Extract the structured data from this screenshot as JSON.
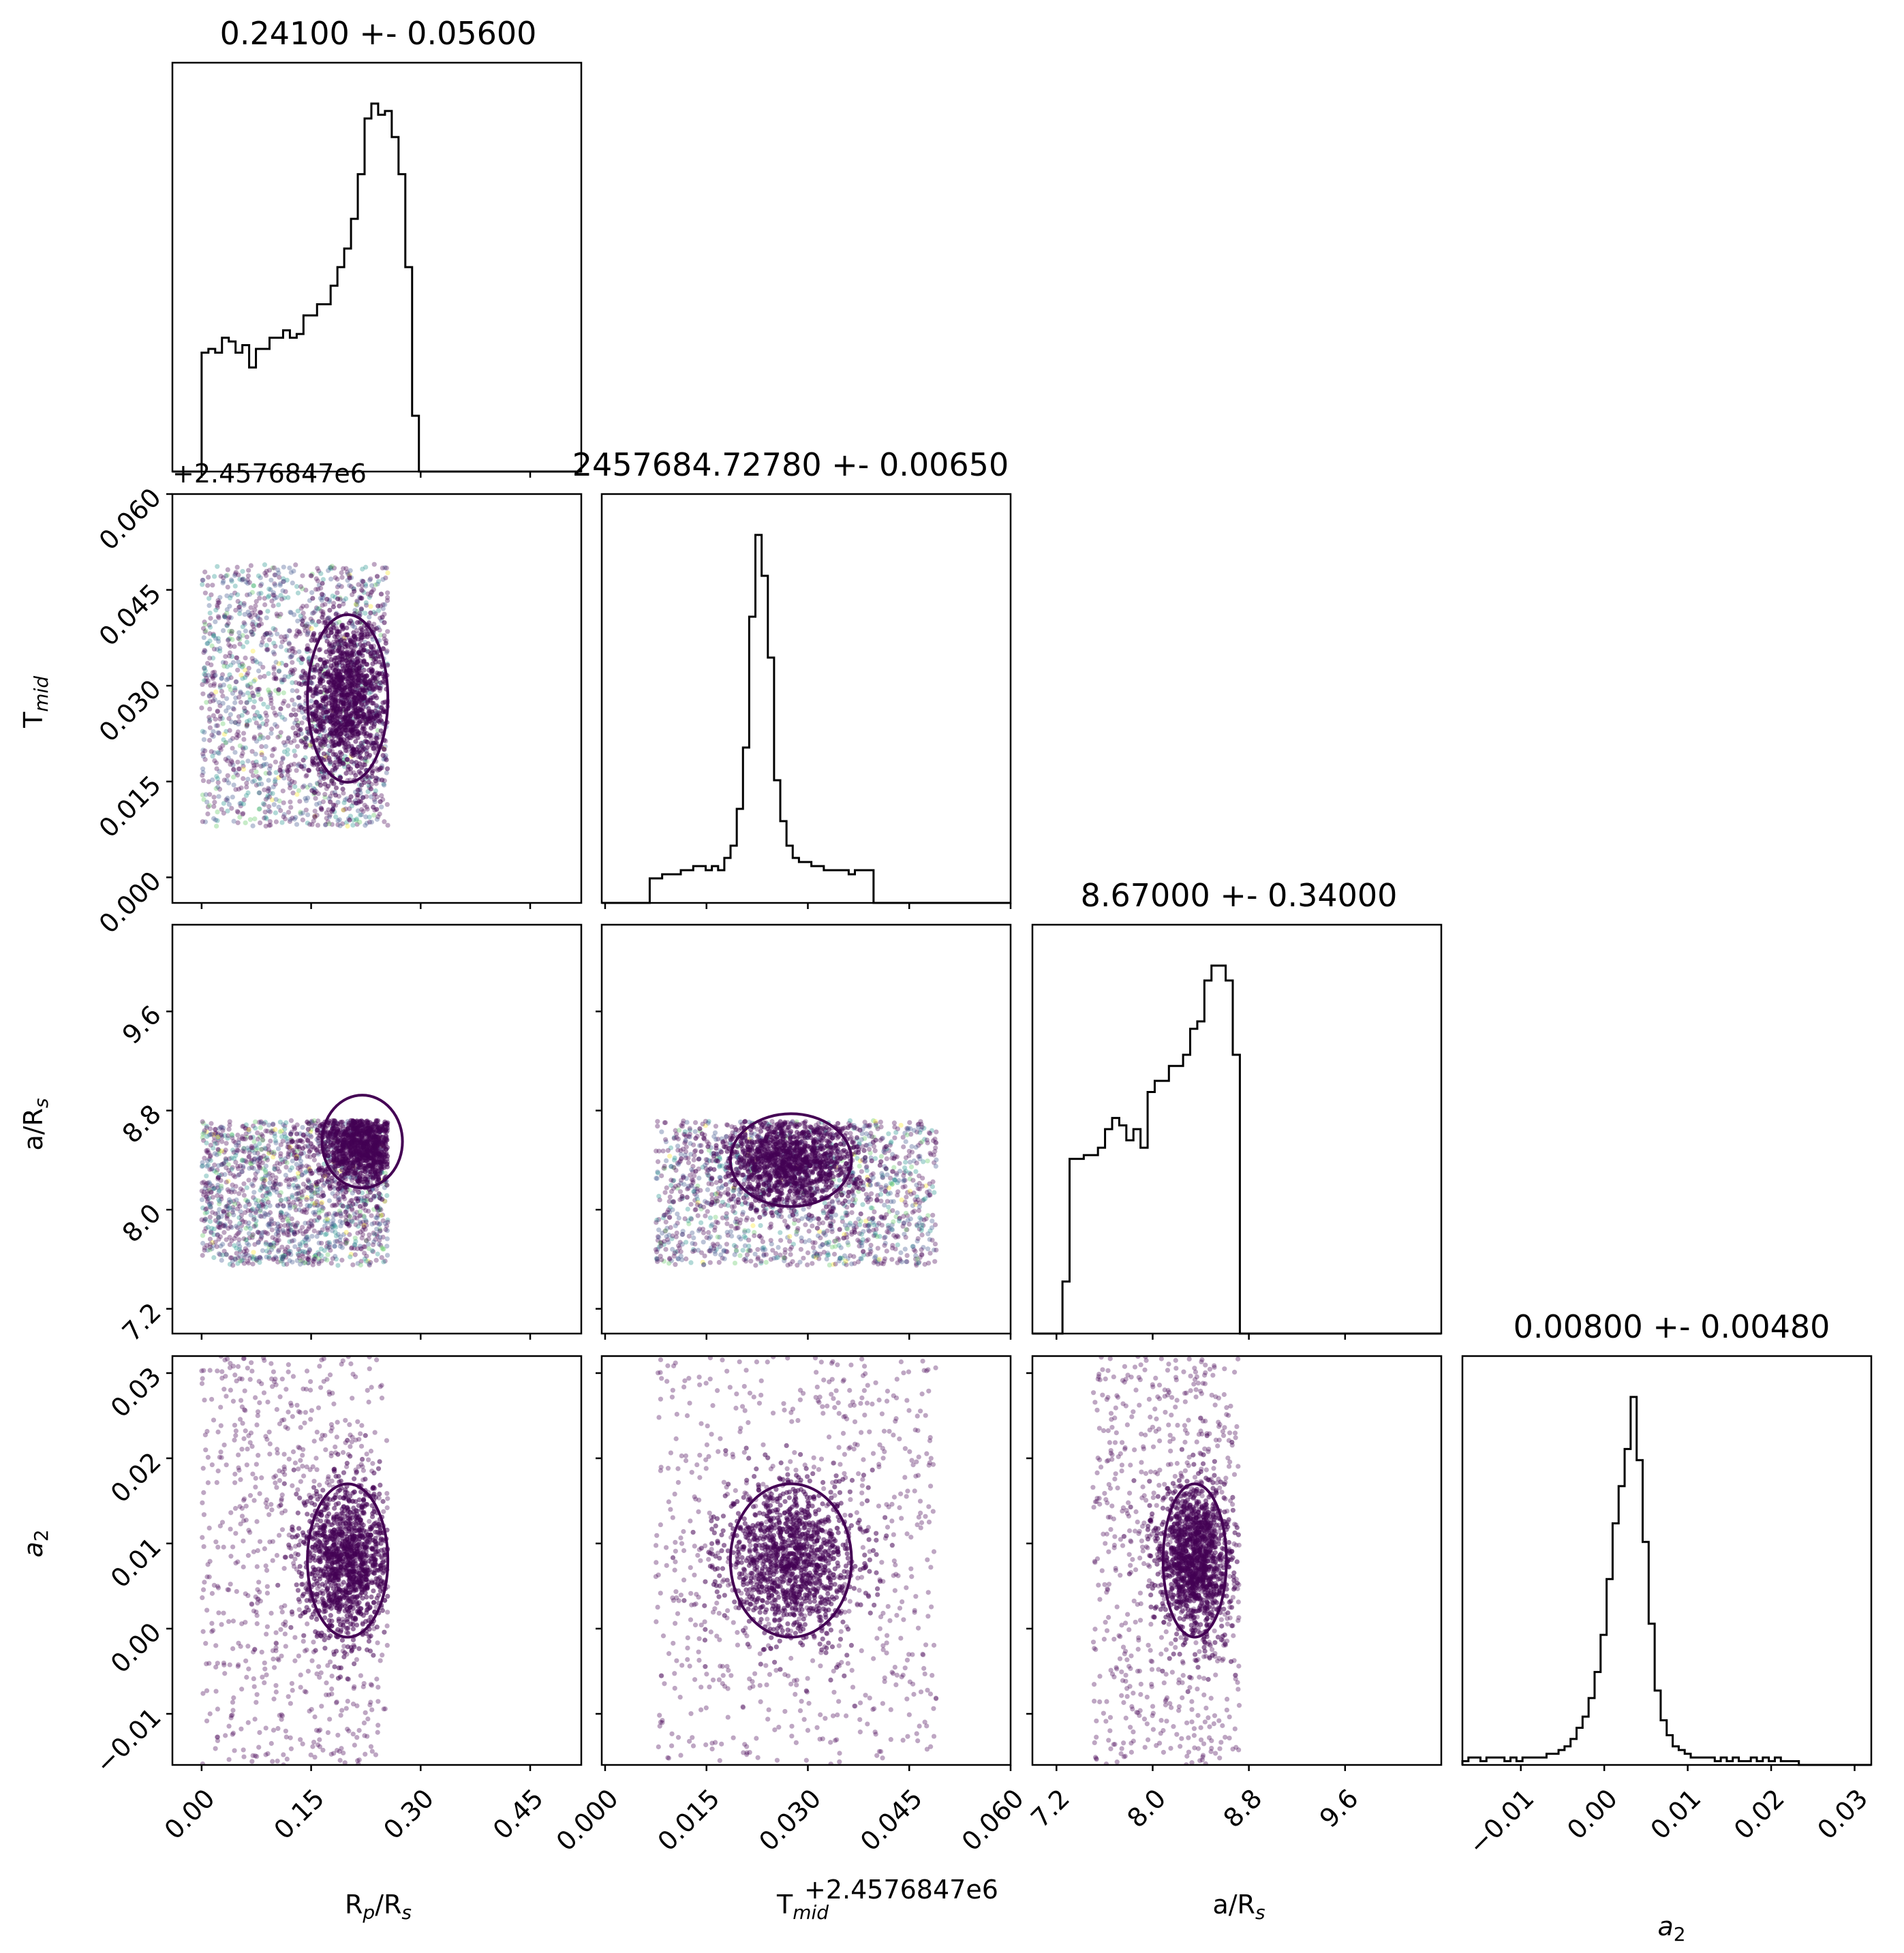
{
  "figure": {
    "type": "corner_plot",
    "colors": {
      "hist_line": "#000000",
      "contour": "#440154",
      "scatter": "#440154",
      "scatter_accents": [
        "#440154",
        "#3b528b",
        "#21918c",
        "#5ec962",
        "#fde725"
      ]
    }
  },
  "chart_data": [
    {
      "id": "hist-rp",
      "type": "histogram",
      "title": "0.24100 +- 0.05600",
      "xlim": [
        -0.04,
        0.52
      ],
      "xticks": [
        0.0,
        0.15,
        0.3,
        0.45
      ],
      "bin_edges_start": 0.0,
      "bin_width": 0.0093,
      "counts": [
        32,
        33,
        32,
        36,
        35,
        32,
        34,
        28,
        33,
        33,
        36,
        36,
        38,
        36,
        37,
        42,
        42,
        45,
        45,
        50,
        55,
        60,
        68,
        80,
        95,
        99,
        96,
        97,
        90,
        80,
        55,
        15,
        0
      ]
    },
    {
      "id": "hist-tmid",
      "type": "histogram",
      "title": "2457684.72780 +- 0.00650",
      "xlim": [
        -0.0005,
        0.06
      ],
      "xticks": [
        0.0,
        0.015,
        0.03,
        0.045,
        0.06
      ],
      "offset_label": "+2.4576847e6",
      "bin_edges_start": 0.0066,
      "bin_width": 0.00092,
      "counts": [
        6,
        6,
        7,
        7,
        7,
        8,
        8,
        9,
        9,
        8,
        9,
        8,
        11,
        14,
        23,
        38,
        70,
        90,
        80,
        60,
        30,
        20,
        14,
        11,
        10,
        10,
        9,
        9,
        8,
        8,
        8,
        8,
        7,
        8,
        8,
        8,
        0
      ]
    },
    {
      "id": "hist-ars",
      "type": "histogram",
      "title": "8.67000 +- 0.34000",
      "xlim": [
        7.0,
        10.4
      ],
      "xticks": [
        7.2,
        8.0,
        8.8,
        9.6
      ],
      "bin_edges_start": 7.25,
      "bin_width": 0.059,
      "counts": [
        14,
        47,
        47,
        48,
        48,
        50,
        55,
        58,
        56,
        52,
        55,
        50,
        65,
        68,
        68,
        72,
        72,
        75,
        82,
        84,
        95,
        99,
        99,
        95,
        75,
        0
      ]
    },
    {
      "id": "hist-a2",
      "type": "histogram",
      "title": "0.00800 +- 0.00480",
      "xlim": [
        -0.017,
        0.032
      ],
      "xticks": [
        -0.01,
        0.0,
        0.01,
        0.02,
        0.03
      ],
      "xlabel": "a",
      "xlabel_sub": "2",
      "bin_edges_start": -0.017,
      "bin_width": 0.00072,
      "counts": [
        1,
        2,
        2,
        1,
        2,
        2,
        2,
        1,
        2,
        1,
        2,
        2,
        2,
        2,
        3,
        3,
        4,
        5,
        7,
        10,
        13,
        18,
        25,
        35,
        50,
        65,
        75,
        85,
        99,
        82,
        60,
        38,
        20,
        12,
        8,
        5,
        4,
        3,
        2,
        2,
        2,
        2,
        1,
        2,
        1,
        2,
        1,
        1,
        2,
        1,
        2,
        1,
        2,
        1,
        1,
        1
      ],
      "note": ""
    },
    {
      "id": "scatter-rp-tmid",
      "type": "scatter",
      "x_param": "Rp/Rs",
      "y_param": "Tmid",
      "xlim": [
        -0.04,
        0.52
      ],
      "ylim": [
        -0.004,
        0.06
      ],
      "yticks": [
        0.0,
        0.015,
        0.03,
        0.045,
        0.06
      ],
      "offset_label": "+2.4576847e6",
      "points_box": {
        "x": [
          0.0,
          0.255
        ],
        "y": [
          0.008,
          0.049
        ]
      },
      "cluster": {
        "x": 0.2,
        "y": 0.028
      }
    },
    {
      "id": "scatter-rp-ars",
      "type": "scatter",
      "x_param": "Rp/Rs",
      "y_param": "a/Rs",
      "xlim": [
        -0.04,
        0.52
      ],
      "ylim": [
        7.0,
        10.3
      ],
      "yticks": [
        7.2,
        8.0,
        8.8,
        9.6
      ],
      "points_box": {
        "x": [
          0.0,
          0.255
        ],
        "y": [
          7.55,
          8.72
        ]
      },
      "cluster": {
        "x": 0.22,
        "y": 8.55
      }
    },
    {
      "id": "scatter-tmid-ars",
      "type": "scatter",
      "x_param": "Tmid",
      "y_param": "a/Rs",
      "xlim": [
        -0.0005,
        0.06
      ],
      "ylim": [
        7.0,
        10.3
      ],
      "points_box": {
        "x": [
          0.0075,
          0.049
        ],
        "y": [
          7.55,
          8.72
        ]
      },
      "cluster": {
        "x": 0.0275,
        "y": 8.4
      }
    },
    {
      "id": "scatter-rp-a2",
      "type": "scatter",
      "x_param": "Rp/Rs",
      "y_param": "a2",
      "xlim": [
        -0.04,
        0.52
      ],
      "ylim": [
        -0.016,
        0.032
      ],
      "yticks": [
        -0.01,
        0.0,
        0.01,
        0.02,
        0.03
      ],
      "xticks": [
        0.0,
        0.15,
        0.3,
        0.45
      ],
      "xlabel": "R",
      "xlabel_sub": "p",
      "xlabel_mid": "/R",
      "xlabel_sub2": "s",
      "points_box": {
        "x": [
          0.0,
          0.255
        ],
        "y": [
          -0.016,
          0.032
        ]
      },
      "cluster": {
        "x": 0.2,
        "y": 0.008
      }
    },
    {
      "id": "scatter-tmid-a2",
      "type": "scatter",
      "x_param": "Tmid",
      "y_param": "a2",
      "xlim": [
        -0.0005,
        0.06
      ],
      "ylim": [
        -0.016,
        0.032
      ],
      "xticks": [
        0.0,
        0.015,
        0.03,
        0.045,
        0.06
      ],
      "xlabel": "T",
      "xlabel_sub": "mid",
      "offset_label": "+2.4576847e6",
      "points_box": {
        "x": [
          0.0075,
          0.049
        ],
        "y": [
          -0.016,
          0.032
        ]
      },
      "cluster": {
        "x": 0.0275,
        "y": 0.008
      }
    },
    {
      "id": "scatter-ars-a2",
      "type": "scatter",
      "x_param": "a/Rs",
      "y_param": "a2",
      "xlim": [
        7.0,
        10.4
      ],
      "ylim": [
        -0.016,
        0.032
      ],
      "xticks": [
        7.2,
        8.0,
        8.8,
        9.6
      ],
      "xlabel": "a/R",
      "xlabel_sub": "s",
      "points_box": {
        "x": [
          7.5,
          8.72
        ],
        "y": [
          -0.016,
          0.032
        ]
      },
      "cluster": {
        "x": 8.35,
        "y": 0.008
      }
    }
  ],
  "labels": {
    "y_tmid": "T",
    "y_tmid_sub": "mid",
    "y_ars": "a/R",
    "y_ars_sub": "s",
    "y_a2": "a",
    "y_a2_sub": "2",
    "top_offset": "+2.4576847e6"
  }
}
